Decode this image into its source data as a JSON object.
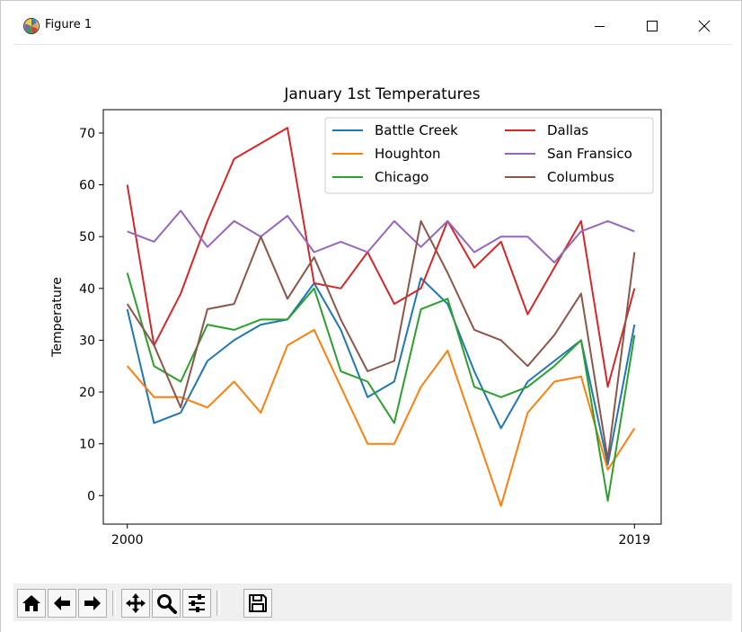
{
  "window": {
    "title": "Figure 1",
    "icons": {
      "app": "matplotlib-logo-icon",
      "minimize": "minimize-icon",
      "maximize": "maximize-icon",
      "close": "close-icon"
    }
  },
  "toolbar": {
    "buttons": [
      {
        "icon": "home-icon"
      },
      {
        "icon": "back-arrow-icon"
      },
      {
        "icon": "forward-arrow-icon"
      },
      {
        "icon": "pan-icon"
      },
      {
        "icon": "zoom-icon"
      },
      {
        "icon": "configure-subplots-icon"
      },
      {
        "icon": "save-icon"
      }
    ]
  },
  "chart_data": {
    "type": "line",
    "title": "January 1st Temperatures",
    "xlabel": "",
    "ylabel": "Temperature",
    "x": [
      2000,
      2001,
      2002,
      2003,
      2004,
      2005,
      2006,
      2007,
      2008,
      2009,
      2010,
      2011,
      2012,
      2013,
      2014,
      2015,
      2016,
      2017,
      2018,
      2019
    ],
    "xticks": [
      2000,
      2019
    ],
    "xlim": [
      1999.1,
      2020.0
    ],
    "ylim": [
      -5.5,
      74.5
    ],
    "yticks": [
      0,
      10,
      20,
      30,
      40,
      50,
      60,
      70
    ],
    "grid": false,
    "legend": {
      "position": "top-right",
      "columns": 2
    },
    "series": [
      {
        "name": "Battle Creek",
        "color": "#1f77b4",
        "values": [
          36,
          14,
          16,
          26,
          30,
          33,
          34,
          41,
          32,
          19,
          22,
          42,
          37,
          24,
          13,
          22,
          26,
          30,
          6,
          33
        ]
      },
      {
        "name": "Houghton",
        "color": "#ff7f0e",
        "values": [
          25,
          19,
          19,
          17,
          22,
          16,
          29,
          32,
          21,
          10,
          10,
          21,
          28,
          13,
          -2,
          16,
          22,
          23,
          5,
          13
        ]
      },
      {
        "name": "Chicago",
        "color": "#2ca02c",
        "values": [
          43,
          25,
          22,
          33,
          32,
          34,
          34,
          40,
          24,
          22,
          14,
          36,
          38,
          21,
          19,
          21,
          25,
          30,
          -1,
          31
        ]
      },
      {
        "name": "Dallas",
        "color": "#d62728",
        "values": [
          60,
          29,
          39,
          53,
          65,
          68,
          71,
          41,
          40,
          47,
          37,
          40,
          53,
          44,
          49,
          35,
          44,
          53,
          21,
          40
        ]
      },
      {
        "name": "San Fransico",
        "color": "#9467bd",
        "values": [
          51,
          49,
          55,
          48,
          53,
          50,
          54,
          47,
          49,
          47,
          53,
          48,
          53,
          47,
          50,
          50,
          45,
          51,
          53,
          51
        ]
      },
      {
        "name": "Columbus",
        "color": "#8c564b",
        "values": [
          37,
          29,
          17,
          36,
          37,
          50,
          38,
          46,
          34,
          24,
          26,
          53,
          43,
          32,
          30,
          25,
          31,
          39,
          7,
          47
        ]
      }
    ]
  }
}
